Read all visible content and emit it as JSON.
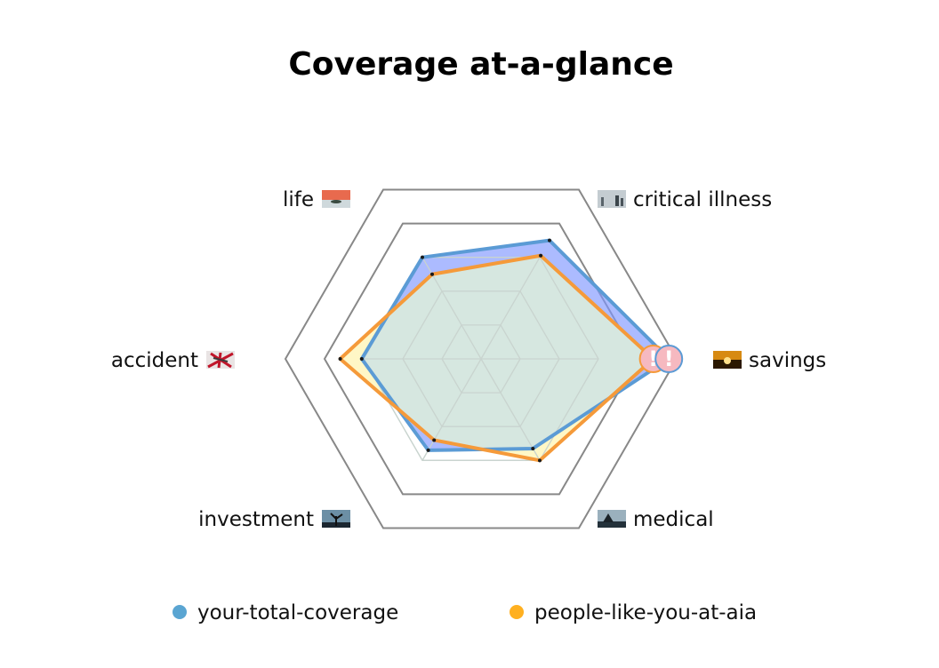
{
  "chart_data": {
    "type": "radar",
    "title": "Coverage at-a-glance",
    "axes": [
      {
        "label": "savings",
        "icon": "sunset-icon"
      },
      {
        "label": "medical",
        "icon": "tree-silhouette-icon"
      },
      {
        "label": "investment",
        "icon": "bare-tree-icon"
      },
      {
        "label": "accident",
        "icon": "red-branches-icon"
      },
      {
        "label": "life",
        "icon": "sea-sunset-icon"
      },
      {
        "label": "critical illness",
        "icon": "misty-figures-icon"
      }
    ],
    "max": 100,
    "grid_levels": [
      20,
      40,
      60,
      80,
      100
    ],
    "series": [
      {
        "name": "your-total-coverage",
        "color": "#5aa5d2",
        "stroke": "#5b9bd5",
        "fill": "#7f96ff",
        "values": [
          96,
          53,
          54,
          61,
          60,
          70
        ]
      },
      {
        "name": "people-like-you-at-aia",
        "color": "#ffb020",
        "stroke": "#f59a3a",
        "fill": "#fff3a8",
        "values": [
          88,
          60,
          48,
          72,
          50,
          61
        ]
      }
    ],
    "markers": [
      {
        "axis": "savings",
        "series": "people-like-you-at-aia",
        "symbol": "!"
      },
      {
        "axis": "savings",
        "series": "your-total-coverage",
        "symbol": "!"
      }
    ],
    "overlap_fill": "#d6e7e0",
    "grid": "hexagon",
    "legend": "bottom"
  }
}
